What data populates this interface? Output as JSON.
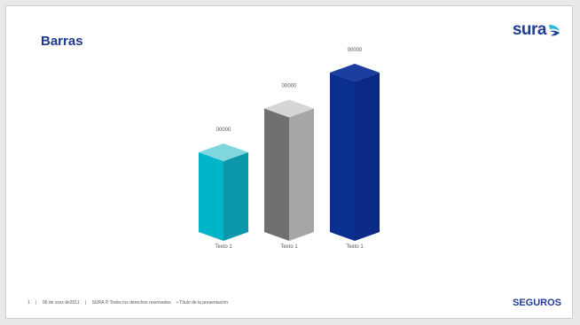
{
  "slide": {
    "title": "Barras",
    "logo_text": "sura",
    "footer": {
      "page_number": "1",
      "separator": "|",
      "date": "00 de xxxx de2011",
      "rights": "SURA ® Todos los derechos reservados",
      "presentation_title": "• Título de la presentación"
    },
    "brand_footer": "SEGUROS"
  },
  "colors": {
    "title": "#1e3a8c",
    "brand": "#1f3d95",
    "logo_accent": "#2fb8d8"
  },
  "chart_data": {
    "type": "bar",
    "categories": [
      "Texto 1",
      "Texto 1",
      "Texto 1"
    ],
    "values": [
      100,
      155,
      200
    ],
    "data_labels": [
      "00000",
      "00000",
      "00000"
    ],
    "ylim": [
      0,
      200
    ],
    "grid": false,
    "bar_colors": [
      {
        "front": "#00b5c9",
        "side": "#0d97aa",
        "top": "#7fd6de"
      },
      {
        "front": "#707070",
        "side": "#a4a6a8",
        "top": "#d6d6d6"
      },
      {
        "front": "#0a2f91",
        "side": "#0a2a85",
        "top": "#1b3d9e"
      }
    ]
  }
}
